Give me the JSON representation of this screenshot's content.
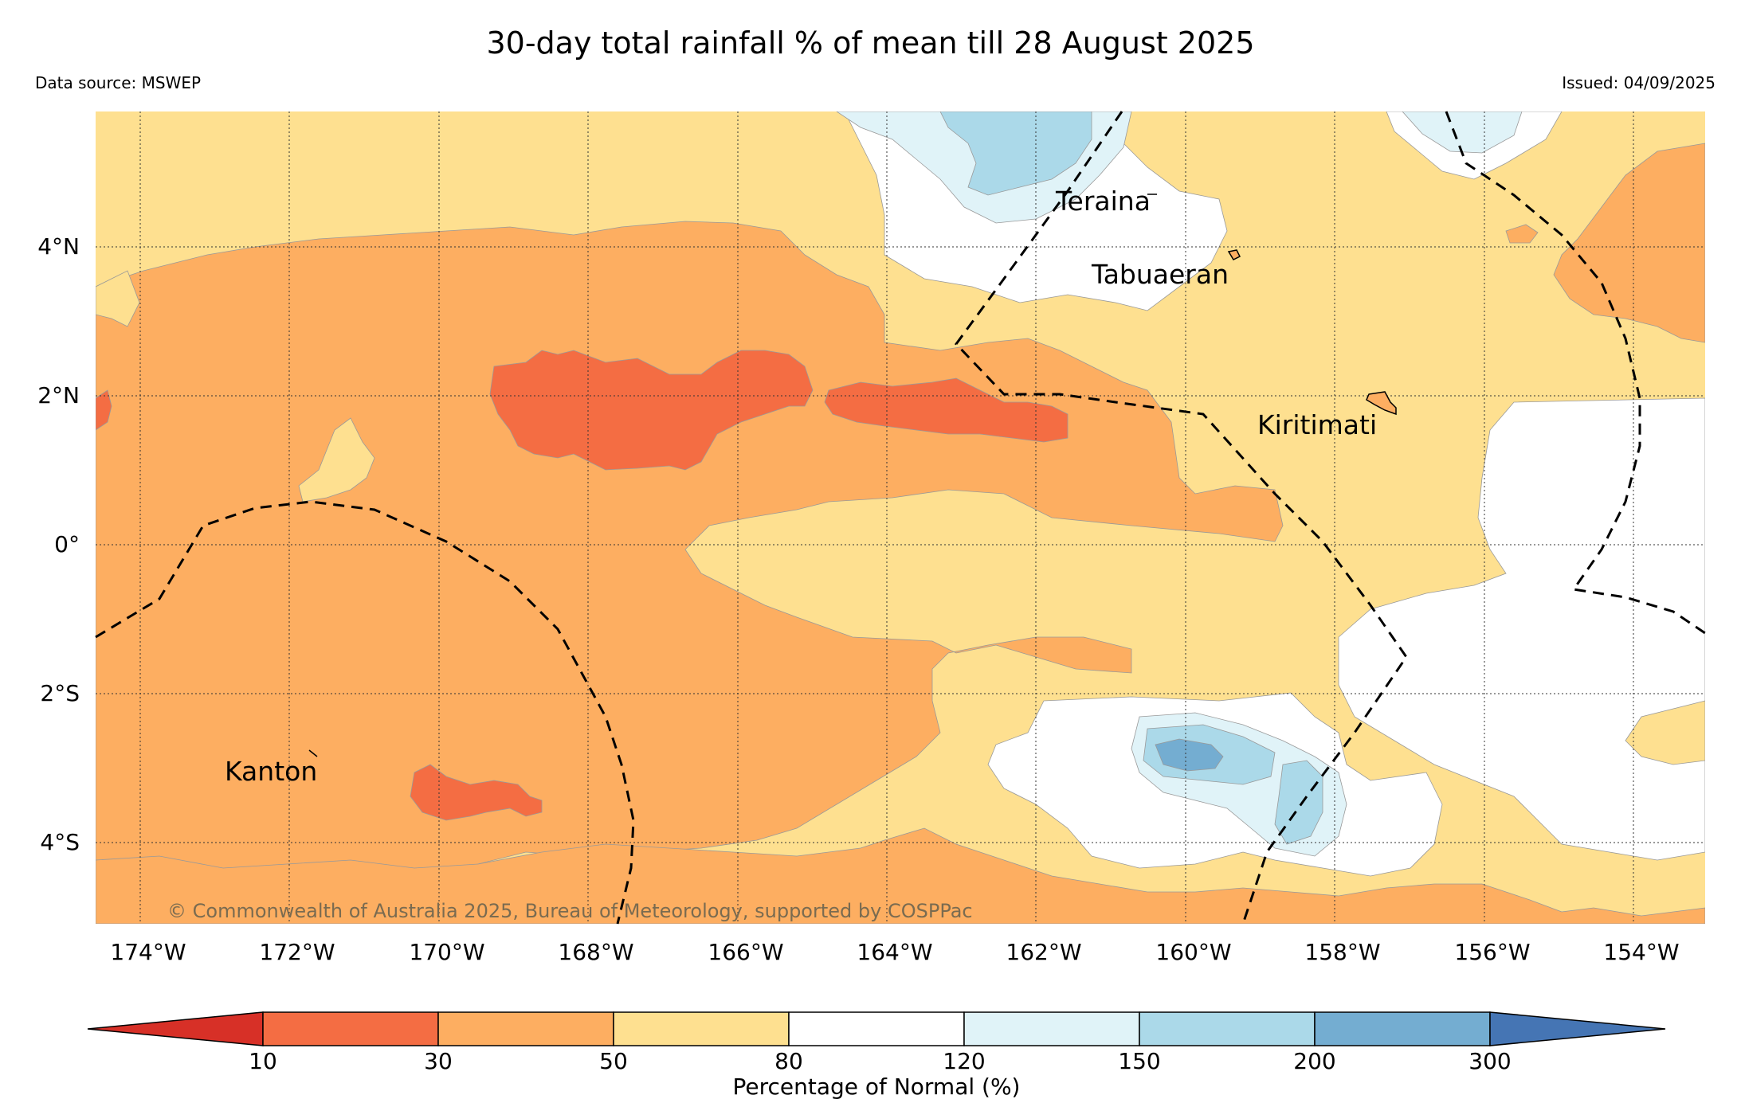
{
  "title": "30-day total rainfall % of mean till 28 August 2025",
  "data_source": "Data source: MSWEP",
  "issued": "Issued: 04/09/2025",
  "copyright": "© Commonwealth of Australia 2025, Bureau of Meteorology, supported by COSPPac",
  "map": {
    "lon_range": [
      -174.6,
      -153.0
    ],
    "lat_range": [
      -5.1,
      5.8
    ],
    "lon_ticks": [
      "174°W",
      "172°W",
      "170°W",
      "168°W",
      "166°W",
      "164°W",
      "162°W",
      "160°W",
      "158°W",
      "156°W",
      "154°W"
    ],
    "lat_ticks": [
      "4°N",
      "2°N",
      "0°",
      "2°S",
      "4°S"
    ],
    "gridlines": true,
    "places": [
      "Teraina",
      "Tabuaeran",
      "Kiritimati",
      "Kanton"
    ]
  },
  "colorbar": {
    "label": "Percentage of Normal (%)",
    "ticks": [
      "10",
      "30",
      "50",
      "80",
      "120",
      "150",
      "200",
      "300"
    ],
    "colors": [
      "#d73027",
      "#f46d43",
      "#fdae61",
      "#fee090",
      "#ffffff",
      "#e0f3f8",
      "#abd9e9",
      "#74add1",
      "#4575b4"
    ],
    "extend": "both"
  }
}
